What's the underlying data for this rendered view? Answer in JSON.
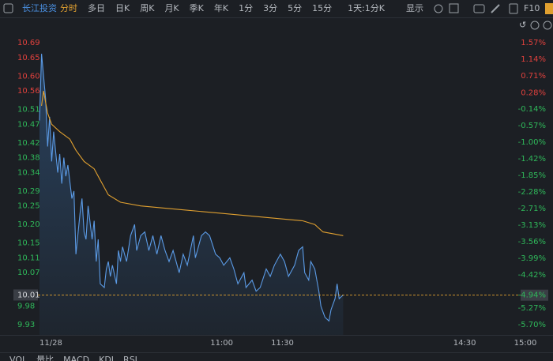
{
  "toolbar": {
    "stock": "长江投资",
    "tabs": [
      "分时",
      "多日",
      "日K",
      "周K",
      "月K",
      "季K",
      "年K",
      "1分",
      "3分",
      "5分",
      "15分",
      "1天:1分K"
    ],
    "active_tab": 0,
    "display": "显示",
    "f10": "F10"
  },
  "chart_data": {
    "type": "line",
    "series": [
      {
        "name": "price",
        "color": "#5b9be6",
        "x": [
          0,
          1,
          3,
          4,
          5,
          6,
          7,
          9,
          10,
          11,
          12,
          13,
          14,
          16,
          17,
          18,
          20,
          21,
          22,
          23,
          24,
          26,
          27,
          28,
          29,
          30,
          32,
          33,
          34,
          35,
          36,
          38,
          39,
          40,
          41,
          43,
          45,
          47,
          48,
          50,
          52,
          54,
          56,
          58,
          60,
          62,
          64,
          66,
          69,
          71,
          73,
          76,
          77,
          80,
          82,
          84,
          87,
          89,
          91,
          94,
          96,
          98,
          101,
          102,
          105,
          107,
          109,
          112,
          114,
          116,
          119,
          121,
          123,
          126,
          128,
          130,
          131,
          133,
          134,
          136,
          138,
          139,
          141,
          143,
          144,
          146,
          147,
          148,
          150
        ],
        "values": [
          10.48,
          10.66,
          10.54,
          10.41,
          10.49,
          10.37,
          10.45,
          10.34,
          10.39,
          10.31,
          10.38,
          10.33,
          10.36,
          10.27,
          10.29,
          10.12,
          10.23,
          10.27,
          10.18,
          10.16,
          10.25,
          10.16,
          10.21,
          10.1,
          10.16,
          10.04,
          10.03,
          10.08,
          10.1,
          10.06,
          10.09,
          10.04,
          10.13,
          10.1,
          10.14,
          10.1,
          10.17,
          10.2,
          10.13,
          10.17,
          10.18,
          10.13,
          10.17,
          10.12,
          10.17,
          10.13,
          10.1,
          10.13,
          10.07,
          10.12,
          10.09,
          10.17,
          10.11,
          10.17,
          10.18,
          10.17,
          10.12,
          10.11,
          10.09,
          10.11,
          10.08,
          10.04,
          10.07,
          10.03,
          10.05,
          10.02,
          10.03,
          10.08,
          10.06,
          10.09,
          10.12,
          10.1,
          10.06,
          10.09,
          10.13,
          10.14,
          10.07,
          10.05,
          10.1,
          10.08,
          10.02,
          9.98,
          9.95,
          9.94,
          9.97,
          10.0,
          10.04,
          10.0,
          10.01
        ]
      },
      {
        "name": "average",
        "color": "#e0a030",
        "x": [
          1,
          2,
          4,
          6,
          10,
          15,
          18,
          22,
          27,
          31,
          34,
          40,
          50,
          70,
          90,
          110,
          130,
          136,
          140,
          145,
          150
        ],
        "values": [
          10.52,
          10.56,
          10.5,
          10.47,
          10.45,
          10.43,
          10.4,
          10.37,
          10.35,
          10.31,
          10.28,
          10.26,
          10.25,
          10.24,
          10.23,
          10.22,
          10.21,
          10.2,
          10.18,
          10.175,
          10.17
        ]
      }
    ],
    "xlim": [
      0,
      240
    ],
    "xticks": [
      {
        "value": 0,
        "label": "11/28"
      },
      {
        "value": 90,
        "label": "11:00"
      },
      {
        "value": 120,
        "label": "11:30"
      },
      {
        "value": 210,
        "label": "14:30"
      },
      {
        "value": 240,
        "label": "15:00"
      }
    ],
    "ylim": [
      9.93,
      10.69
    ],
    "yticks": [
      10.69,
      10.65,
      {
        "value": 10.6,
        "label": "10.60"
      },
      10.56,
      10.51,
      10.47,
      10.42,
      10.38,
      10.34,
      10.29,
      10.25,
      {
        "value": 10.2,
        "label": "10.20"
      },
      10.15,
      10.11,
      10.07,
      9.98,
      9.93
    ],
    "y2lim": [
      -5.7,
      1.57
    ],
    "y2ticks": [
      {
        "value": 1.57,
        "label": "1.57%"
      },
      {
        "value": 1.14,
        "label": "1.14%"
      },
      {
        "value": 0.71,
        "label": "0.71%"
      },
      {
        "value": 0.28,
        "label": "0.28%"
      },
      {
        "value": -0.14,
        "label": "-0.14%"
      },
      {
        "value": -0.57,
        "label": "-0.57%"
      },
      {
        "value": -1.0,
        "label": "-1.00%"
      },
      {
        "value": -1.42,
        "label": "-1.42%"
      },
      {
        "value": -1.85,
        "label": "-1.85%"
      },
      {
        "value": -2.28,
        "label": "-2.28%"
      },
      {
        "value": -2.71,
        "label": "-2.71%"
      },
      {
        "value": -3.13,
        "label": "-3.13%"
      },
      {
        "value": -3.56,
        "label": "-3.56%"
      },
      {
        "value": -3.99,
        "label": "-3.99%"
      },
      {
        "value": -4.42,
        "label": "-4.42%"
      },
      {
        "value": -5.27,
        "label": "-5.27%"
      },
      {
        "value": -5.7,
        "label": "-5.70%"
      }
    ],
    "last_price": 10.01,
    "last_change": {
      "value": -4.94,
      "label": "-4.94%"
    },
    "last_color": "#e0a030",
    "up_color": "#e0413d",
    "down_color": "#2fb85a"
  },
  "indicators": [
    "VOL",
    "量比",
    "MACD",
    "KDJ",
    "RSI"
  ]
}
